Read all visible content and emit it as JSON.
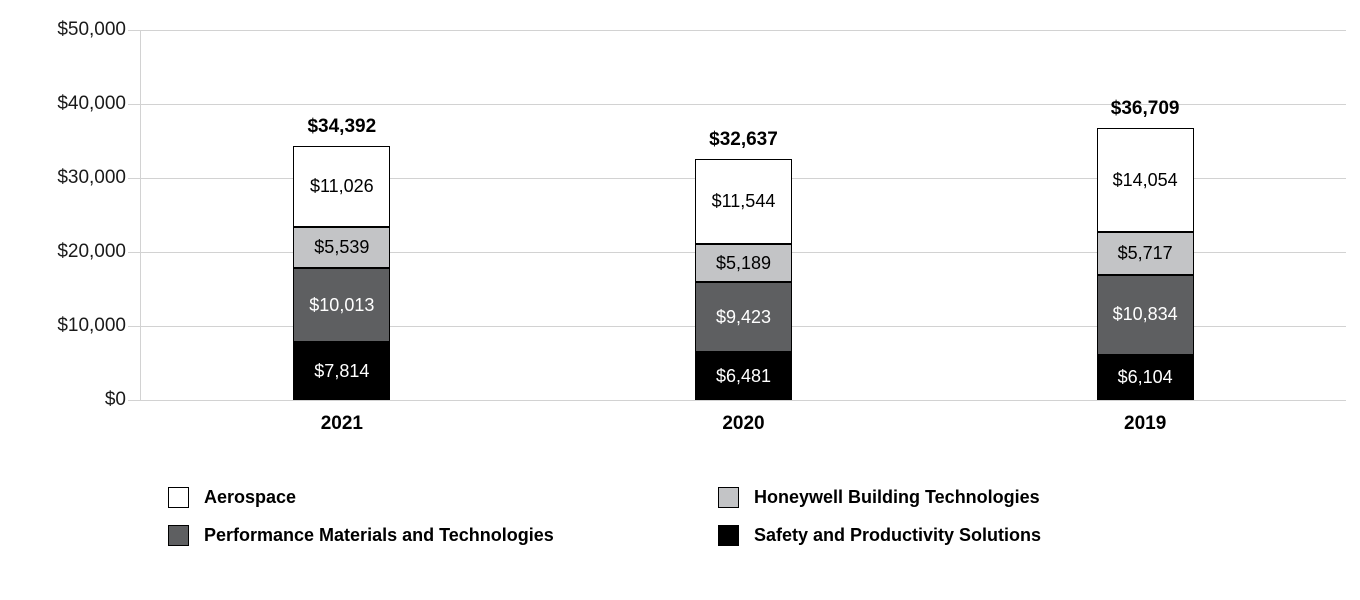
{
  "chart_data": {
    "type": "bar",
    "stacked": true,
    "categories": [
      "2021",
      "2020",
      "2019"
    ],
    "series": [
      {
        "id": "safety-and-productivity-solutions",
        "name": "Safety and Productivity Solutions",
        "color": "#000000",
        "text_color": "#ffffff",
        "values": [
          7814,
          6481,
          6104
        ],
        "labels": [
          "$7,814",
          "$6,481",
          "$6,104"
        ]
      },
      {
        "id": "performance-materials-and-technologies",
        "name": "Performance Materials and Technologies",
        "color": "#5e5f61",
        "text_color": "#ffffff",
        "values": [
          10013,
          9423,
          10834
        ],
        "labels": [
          "$10,013",
          "$9,423",
          "$10,834"
        ]
      },
      {
        "id": "honeywell-building-technologies",
        "name": "Honeywell Building Technologies",
        "color": "#c3c4c6",
        "text_color": "#000000",
        "values": [
          5539,
          5189,
          5717
        ],
        "labels": [
          "$5,539",
          "$5,189",
          "$5,717"
        ]
      },
      {
        "id": "aerospace",
        "name": "Aerospace",
        "color": "#ffffff",
        "text_color": "#000000",
        "values": [
          11026,
          11544,
          14054
        ],
        "labels": [
          "$11,026",
          "$11,544",
          "$14,054"
        ]
      }
    ],
    "stack_order": "bottom-to-top",
    "totals": [
      "$34,392",
      "$32,637",
      "$36,709"
    ],
    "y_axis": {
      "min": 0,
      "max": 50000,
      "tick_labels": [
        "$0",
        "$10,000",
        "$20,000",
        "$30,000",
        "$40,000",
        "$50,000"
      ]
    },
    "grid": true,
    "legend": {
      "position": "bottom",
      "items": [
        {
          "id": "aerospace",
          "label": "Aerospace",
          "color": "#ffffff"
        },
        {
          "id": "honeywell-building-technologies",
          "label": "Honeywell Building Technologies",
          "color": "#c3c4c6"
        },
        {
          "id": "performance-materials-and-technologies",
          "label": "Performance Materials and Technologies",
          "color": "#5e5f61"
        },
        {
          "id": "safety-and-productivity-solutions",
          "label": "Safety and Productivity Solutions",
          "color": "#000000"
        }
      ]
    }
  }
}
